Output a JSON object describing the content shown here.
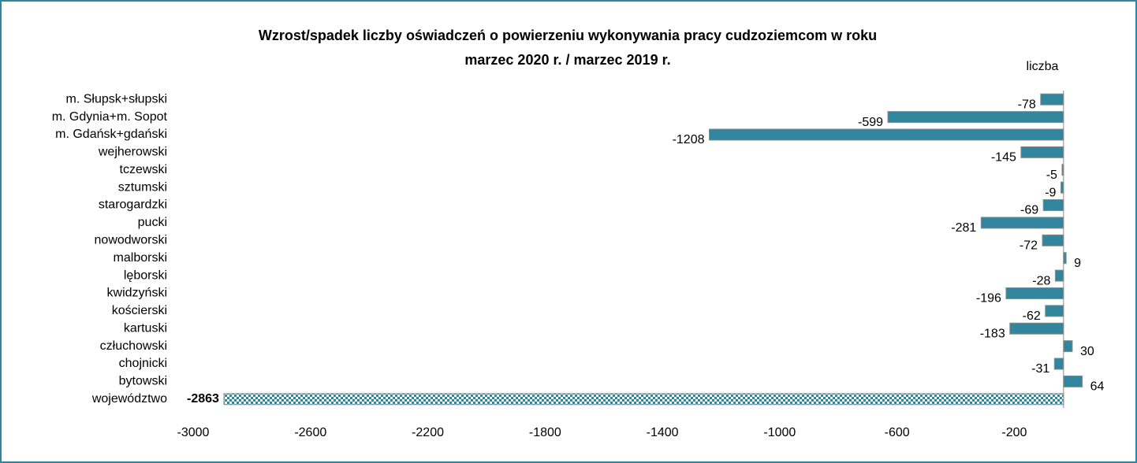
{
  "chart_data": {
    "type": "bar",
    "orientation": "horizontal",
    "title": [
      "Wzrost/spadek liczby oświadczeń o powierzeniu wykonywania pracy cudzoziemcom w roku",
      "marzec 2020 r. / marzec 2019 r."
    ],
    "unit_label": "liczba",
    "categories": [
      "m. Słupsk+słupski",
      "m. Gdynia+m. Sopot",
      "m. Gdańsk+gdański",
      "wejherowski",
      "tczewski",
      "sztumski",
      "starogardzki",
      "pucki",
      "nowodworski",
      "malborski",
      "lęborski",
      "kwidzyński",
      "kościerski",
      "kartuski",
      "człuchowski",
      "chojnicki",
      "bytowski",
      "województwo"
    ],
    "values": [
      -78,
      -599,
      -1208,
      -145,
      -5,
      -9,
      -69,
      -281,
      -72,
      9,
      -28,
      -196,
      -62,
      -183,
      30,
      -31,
      64,
      -2863
    ],
    "color": "#31859c",
    "xlim": [
      -3000,
      100
    ],
    "xticks": [
      -3000,
      -2600,
      -2200,
      -1800,
      -1400,
      -1000,
      -600,
      -200
    ],
    "grid": false
  }
}
